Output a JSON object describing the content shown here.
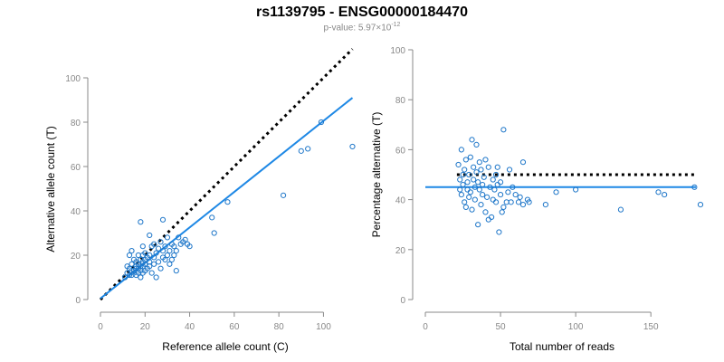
{
  "title": "rs1139795 - ENSG00000184470",
  "subtitle": {
    "prefix": "p-value: 5.97×10",
    "exponent": "-12"
  },
  "colors": {
    "points": "#1f77c9",
    "fit": "#1e88e5",
    "reference": "#000000",
    "axis": "#888888"
  },
  "chart_data": [
    {
      "type": "scatter",
      "xlabel": "Reference allele count (C)",
      "ylabel": "Alternative allele count (T)",
      "xlim": [
        0,
        112
      ],
      "ylim": [
        0,
        100
      ],
      "xticks": [
        0,
        20,
        40,
        60,
        80,
        100
      ],
      "yticks": [
        0,
        20,
        40,
        60,
        80,
        100
      ],
      "reference_line": {
        "style": "dotted",
        "from": [
          0,
          0
        ],
        "to": [
          113,
          113
        ]
      },
      "fit_line": {
        "from": [
          0,
          0.5
        ],
        "to": [
          113,
          91
        ]
      },
      "points": [
        [
          11,
          10
        ],
        [
          12,
          12
        ],
        [
          12,
          15
        ],
        [
          13,
          11
        ],
        [
          13,
          14
        ],
        [
          13,
          20
        ],
        [
          14,
          11
        ],
        [
          14,
          13
        ],
        [
          14,
          16
        ],
        [
          14,
          22
        ],
        [
          15,
          12
        ],
        [
          15,
          13
        ],
        [
          15,
          18
        ],
        [
          16,
          11
        ],
        [
          16,
          14
        ],
        [
          16,
          15
        ],
        [
          16,
          17
        ],
        [
          17,
          12
        ],
        [
          17,
          14
        ],
        [
          17,
          16
        ],
        [
          17,
          20
        ],
        [
          18,
          10
        ],
        [
          18,
          13
        ],
        [
          18,
          15
        ],
        [
          18,
          18
        ],
        [
          18,
          35
        ],
        [
          19,
          12
        ],
        [
          19,
          15
        ],
        [
          19,
          17
        ],
        [
          19,
          20
        ],
        [
          19,
          24
        ],
        [
          20,
          13
        ],
        [
          20,
          16
        ],
        [
          20,
          18
        ],
        [
          20,
          21
        ],
        [
          21,
          14
        ],
        [
          21,
          19
        ],
        [
          22,
          15
        ],
        [
          22,
          17
        ],
        [
          22,
          20
        ],
        [
          22,
          29
        ],
        [
          23,
          12
        ],
        [
          23,
          24
        ],
        [
          24,
          16
        ],
        [
          24,
          19
        ],
        [
          24,
          25
        ],
        [
          25,
          10
        ],
        [
          25,
          21
        ],
        [
          26,
          17
        ],
        [
          26,
          23
        ],
        [
          27,
          14
        ],
        [
          27,
          26
        ],
        [
          28,
          19
        ],
        [
          28,
          22
        ],
        [
          28,
          36
        ],
        [
          29,
          18
        ],
        [
          29,
          24
        ],
        [
          30,
          20
        ],
        [
          30,
          28
        ],
        [
          31,
          16
        ],
        [
          31,
          22
        ],
        [
          32,
          18
        ],
        [
          32,
          25
        ],
        [
          33,
          20
        ],
        [
          33,
          24
        ],
        [
          34,
          13
        ],
        [
          34,
          22
        ],
        [
          35,
          28
        ],
        [
          36,
          25
        ],
        [
          37,
          26
        ],
        [
          38,
          27
        ],
        [
          39,
          25
        ],
        [
          40,
          24
        ],
        [
          50,
          37
        ],
        [
          51,
          30
        ],
        [
          57,
          44
        ],
        [
          82,
          47
        ],
        [
          90,
          67
        ],
        [
          93,
          68
        ],
        [
          99,
          80
        ],
        [
          113,
          69
        ]
      ]
    },
    {
      "type": "scatter",
      "xlabel": "Total number of reads",
      "ylabel": "Percentage alternative (T)",
      "xlim": [
        0,
        183
      ],
      "ylim": [
        0,
        100
      ],
      "xticks": [
        0,
        50,
        100,
        150
      ],
      "yticks": [
        0,
        20,
        40,
        60,
        80,
        100
      ],
      "reference_line": {
        "style": "dotted",
        "y": 50,
        "x_from": 21,
        "x_to": 180
      },
      "fit_line": {
        "y": 45,
        "x_from": 0,
        "x_to": 180
      },
      "points": [
        [
          22,
          54
        ],
        [
          23,
          48
        ],
        [
          23,
          44
        ],
        [
          24,
          42
        ],
        [
          24,
          60
        ],
        [
          25,
          50
        ],
        [
          25,
          46
        ],
        [
          26,
          39
        ],
        [
          26,
          52
        ],
        [
          27,
          37
        ],
        [
          27,
          56
        ],
        [
          28,
          44
        ],
        [
          28,
          47
        ],
        [
          29,
          41
        ],
        [
          29,
          50
        ],
        [
          30,
          43
        ],
        [
          30,
          57
        ],
        [
          31,
          36
        ],
        [
          31,
          64
        ],
        [
          32,
          48
        ],
        [
          32,
          53
        ],
        [
          33,
          45
        ],
        [
          33,
          40
        ],
        [
          34,
          62
        ],
        [
          34,
          51
        ],
        [
          35,
          30
        ],
        [
          35,
          47
        ],
        [
          36,
          44
        ],
        [
          36,
          55
        ],
        [
          37,
          38
        ],
        [
          37,
          52
        ],
        [
          38,
          46
        ],
        [
          38,
          42
        ],
        [
          39,
          49
        ],
        [
          40,
          35
        ],
        [
          40,
          56
        ],
        [
          41,
          41
        ],
        [
          42,
          32
        ],
        [
          42,
          53
        ],
        [
          43,
          45
        ],
        [
          44,
          33
        ],
        [
          45,
          48
        ],
        [
          45,
          40
        ],
        [
          46,
          44
        ],
        [
          47,
          39
        ],
        [
          47,
          50
        ],
        [
          48,
          46
        ],
        [
          48,
          53
        ],
        [
          49,
          27
        ],
        [
          50,
          42
        ],
        [
          50,
          47
        ],
        [
          51,
          35
        ],
        [
          52,
          37
        ],
        [
          52,
          68
        ],
        [
          54,
          39
        ],
        [
          55,
          43
        ],
        [
          56,
          52
        ],
        [
          57,
          39
        ],
        [
          58,
          45
        ],
        [
          60,
          42
        ],
        [
          62,
          39
        ],
        [
          63,
          41
        ],
        [
          65,
          38
        ],
        [
          65,
          55
        ],
        [
          68,
          40
        ],
        [
          69,
          39
        ],
        [
          80,
          38
        ],
        [
          87,
          43
        ],
        [
          100,
          44
        ],
        [
          130,
          36
        ],
        [
          155,
          43
        ],
        [
          159,
          42
        ],
        [
          179,
          45
        ],
        [
          183,
          38
        ]
      ]
    }
  ]
}
